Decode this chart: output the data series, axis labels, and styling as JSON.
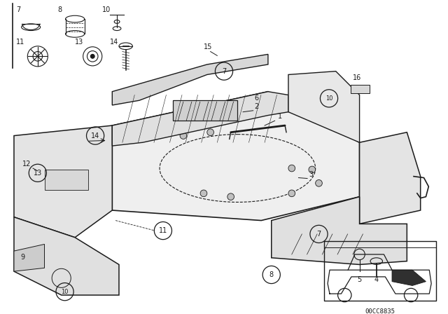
{
  "bg_color": "#ffffff",
  "diagram_code": "00CC8835",
  "black": "#1a1a1a"
}
